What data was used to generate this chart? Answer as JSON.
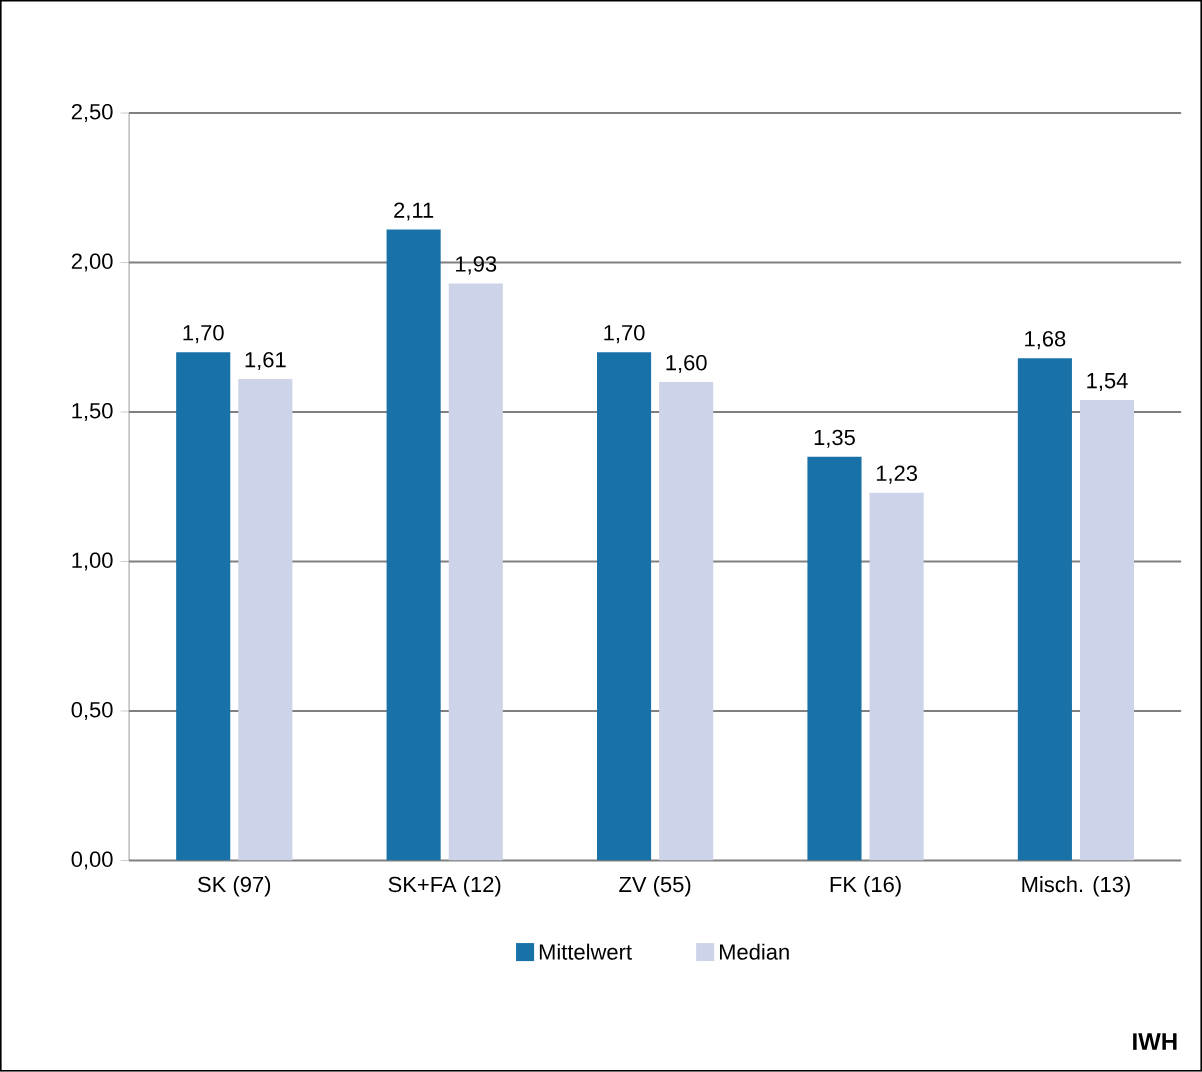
{
  "chart_data": {
    "type": "bar",
    "categories": [
      "SK (97)",
      "SK+FA (12)",
      "ZV (55)",
      "FK (16)",
      "Misch. (13)"
    ],
    "series": [
      {
        "name": "Mittelwert",
        "color": "#1872a8",
        "values": [
          1.7,
          2.11,
          1.7,
          1.35,
          1.68
        ],
        "value_labels": [
          "1,70",
          "2,11",
          "1,70",
          "1,35",
          "1,68"
        ]
      },
      {
        "name": "Median",
        "color": "#cdd3e8",
        "values": [
          1.61,
          1.93,
          1.6,
          1.23,
          1.54
        ],
        "value_labels": [
          "1,61",
          "1,93",
          "1,60",
          "1,23",
          "1,54"
        ]
      }
    ],
    "ylim": [
      0,
      2.5
    ],
    "yticks": [
      {
        "value": 0,
        "label": "0,00"
      },
      {
        "value": 0.5,
        "label": "0,50"
      },
      {
        "value": 1,
        "label": "1,00"
      },
      {
        "value": 1.5,
        "label": "1,50"
      },
      {
        "value": 2,
        "label": "2,00"
      },
      {
        "value": 2.5,
        "label": "2,50"
      }
    ],
    "grid": "y",
    "legend": "bottom",
    "annotations": [
      "IWH"
    ]
  }
}
